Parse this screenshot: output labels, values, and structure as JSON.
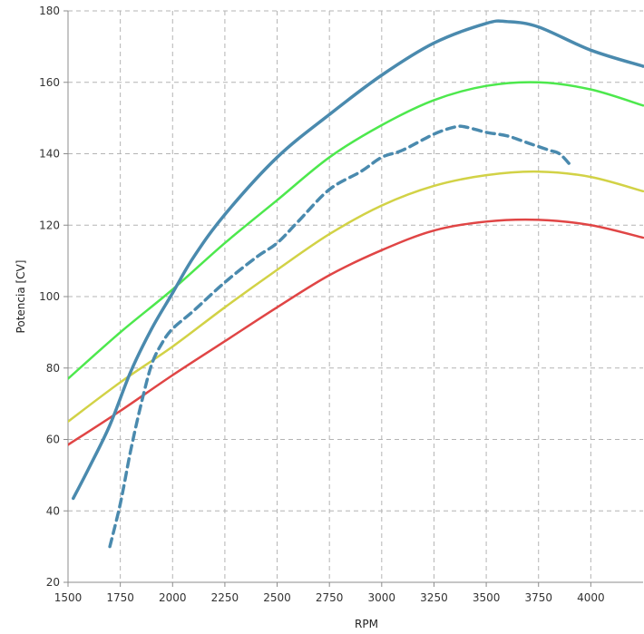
{
  "chart_data": {
    "type": "line",
    "xlabel": "RPM",
    "ylabel": "Potencia [CV]",
    "xlim": [
      1500,
      4250
    ],
    "ylim": [
      20,
      180
    ],
    "x_ticks": [
      1500,
      1750,
      2000,
      2250,
      2500,
      2750,
      3000,
      3250,
      3500,
      3750,
      4000
    ],
    "y_ticks": [
      20,
      40,
      60,
      80,
      100,
      120,
      140,
      160,
      180
    ],
    "grid": true,
    "series": [
      {
        "color": "#e04545",
        "dashed": false,
        "x": [
          1500,
          1750,
          2000,
          2250,
          2500,
          2750,
          3000,
          3250,
          3500,
          3750,
          4000,
          4250
        ],
        "y": [
          58.5,
          68,
          78,
          87.5,
          97,
          106,
          113,
          118.5,
          121,
          121.5,
          120,
          116.5
        ]
      },
      {
        "color": "#d2d246",
        "dashed": false,
        "x": [
          1500,
          1750,
          2000,
          2250,
          2500,
          2750,
          3000,
          3250,
          3500,
          3750,
          4000,
          4250
        ],
        "y": [
          65,
          76,
          86,
          97,
          107.5,
          117.5,
          125.5,
          131,
          134,
          135,
          133.5,
          129.5
        ]
      },
      {
        "color": "#4de84d",
        "dashed": false,
        "x": [
          1500,
          1750,
          2000,
          2250,
          2500,
          2750,
          3000,
          3250,
          3500,
          3750,
          4000,
          4250
        ],
        "y": [
          77,
          90,
          102,
          115,
          127,
          139,
          148,
          155,
          159,
          160,
          158,
          153.5
        ]
      },
      {
        "color": "#4a8aae",
        "dashed": false,
        "x": [
          1525,
          1600,
          1700,
          1800,
          1900,
          2000,
          2100,
          2250,
          2500,
          2750,
          3000,
          3250,
          3500,
          3600,
          3750,
          4000,
          4250
        ],
        "y": [
          43.5,
          52,
          64,
          79,
          91,
          101,
          111,
          123,
          139,
          151,
          162,
          171,
          176.5,
          177,
          175.5,
          169,
          164.5
        ]
      },
      {
        "color": "#4a8aae",
        "dashed": true,
        "x": [
          1700,
          1750,
          1800,
          1850,
          1900,
          1950,
          2000,
          2100,
          2250,
          2400,
          2500,
          2600,
          2750,
          2900,
          3000,
          3100,
          3250,
          3350,
          3400,
          3500,
          3600,
          3700,
          3800,
          3850,
          3900
        ],
        "y": [
          30,
          42,
          57,
          70,
          81,
          87,
          91,
          96,
          104,
          111,
          115,
          121,
          130,
          135,
          139,
          141,
          145.5,
          147.5,
          147.5,
          146,
          145,
          143,
          141,
          140,
          137
        ]
      }
    ]
  }
}
